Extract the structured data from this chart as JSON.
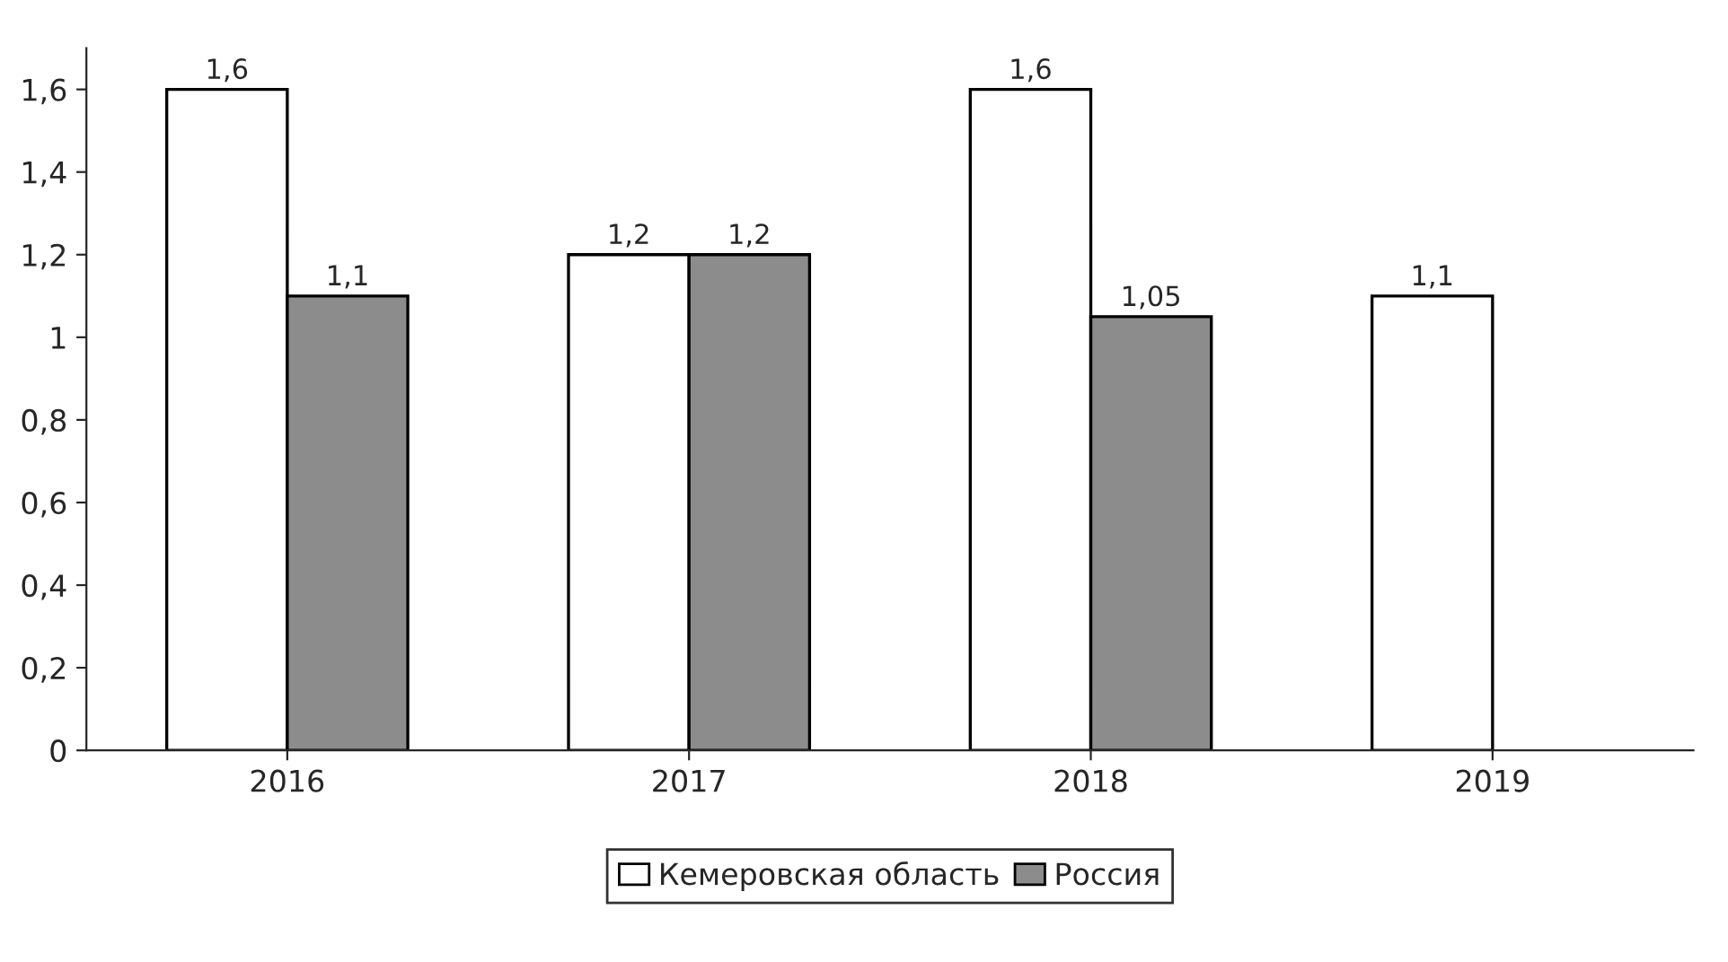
{
  "chart_data": {
    "type": "bar",
    "categories": [
      "2016",
      "2017",
      "2018",
      "2019"
    ],
    "series": [
      {
        "name": "Кемеровская область",
        "color": "#ffffff",
        "values": [
          1.6,
          1.2,
          1.6,
          1.1
        ],
        "value_labels": [
          "1,6",
          "1,2",
          "1,6",
          "1,1"
        ]
      },
      {
        "name": "Россия",
        "color": "#8c8c8c",
        "values": [
          1.1,
          1.2,
          1.05,
          null
        ],
        "value_labels": [
          "1,1",
          "1,2",
          "1,05",
          null
        ]
      }
    ],
    "ylim": [
      0,
      1.7
    ],
    "yticks": [
      0,
      {
        "value": 0.2,
        "label": "0,2"
      },
      {
        "value": 0.4,
        "label": "0,4"
      },
      {
        "value": 0.6,
        "label": "0,6"
      },
      {
        "value": 0.8,
        "label": "0,8"
      },
      1,
      {
        "value": 1.2,
        "label": "1,2"
      },
      {
        "value": 1.4,
        "label": "1,4"
      },
      {
        "value": 1.6,
        "label": "1,6"
      }
    ],
    "grid": false,
    "legend": "bottom"
  }
}
